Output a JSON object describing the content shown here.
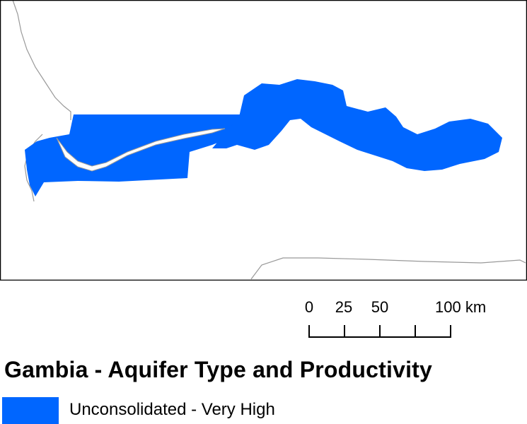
{
  "map": {
    "title": "Gambia - Aquifer Type and Productivity",
    "aquifer_color": "#0066ff",
    "border_color": "#000000",
    "boundary_color": "#999999",
    "background": "#ffffff"
  },
  "scale_bar": {
    "ticks": [
      "0",
      "25",
      "50",
      "100 km"
    ],
    "values_km": [
      0,
      25,
      50,
      75,
      100
    ],
    "unit": "km"
  },
  "legend": {
    "items": [
      {
        "label": "Unconsolidated - Very High",
        "color": "#0066ff"
      }
    ]
  }
}
